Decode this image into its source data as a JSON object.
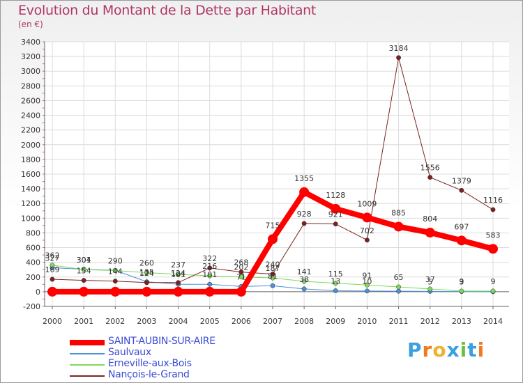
{
  "header": {
    "title": "Evolution du Montant de la Dette par Habitant",
    "subtitle": "(en €)"
  },
  "logo": {
    "letters": [
      "P",
      "r",
      "o",
      "x",
      "i",
      "t",
      "i"
    ],
    "colors": [
      "#3aa0e0",
      "#f07a20",
      "#f0b030",
      "#3aa0e0",
      "#6cc040",
      "#3aa0e0",
      "#f07a20"
    ]
  },
  "chart_data": {
    "type": "line",
    "x": [
      2000,
      2001,
      2002,
      2003,
      2004,
      2005,
      2006,
      2007,
      2008,
      2009,
      2010,
      2011,
      2012,
      2013,
      2014
    ],
    "ylim": [
      -200,
      3400
    ],
    "yticks": [
      -200,
      0,
      200,
      400,
      600,
      800,
      1000,
      1200,
      1400,
      1600,
      1800,
      2000,
      2200,
      2400,
      2600,
      2800,
      3000,
      3200,
      3400
    ],
    "grid": true,
    "legend_position": "bottom-left",
    "series": [
      {
        "name": "SAINT-AUBIN-SUR-AIRE",
        "color": "#ff0000",
        "width": 8,
        "values": [
          0,
          0,
          0,
          0,
          0,
          0,
          0,
          715,
          1355,
          1128,
          1009,
          885,
          804,
          697,
          583
        ],
        "labels": [
          "",
          "",
          "",
          "",
          "",
          "",
          "",
          "715",
          "1355",
          "1128",
          "1009",
          "885",
          "804",
          "697",
          "583"
        ]
      },
      {
        "name": "Saulvaux",
        "color": "#4a90d9",
        "width": 1,
        "values": [
          327,
          304,
          290,
          135,
          101,
          101,
          71,
          81,
          38,
          13,
          10,
          7,
          5,
          3,
          0
        ],
        "labels": [
          "327",
          "304",
          "290",
          "135",
          "101",
          "101",
          "71",
          "81",
          "38",
          "13",
          "10",
          "",
          "5",
          "3",
          ""
        ]
      },
      {
        "name": "Erneville-aux-Bois",
        "color": "#7ed957",
        "width": 1,
        "values": [
          362,
          301,
          287,
          260,
          237,
          216,
          202,
          187,
          141,
          115,
          91,
          65,
          37,
          9,
          9
        ],
        "labels": [
          "362",
          "301",
          "",
          "260",
          "237",
          "216",
          "202",
          "187",
          "141",
          "115",
          "91",
          "65",
          "37",
          "9",
          "9"
        ]
      },
      {
        "name": "Nançois-le-Grand",
        "color": "#7a2222",
        "width": 1,
        "values": [
          169,
          154,
          144,
          124,
          124,
          322,
          268,
          240,
          928,
          921,
          702,
          3184,
          1556,
          1379,
          1116
        ],
        "labels": [
          "169",
          "154",
          "144",
          "124",
          "124",
          "322",
          "268",
          "240",
          "928",
          "921",
          "702",
          "3184",
          "1556",
          "1379",
          "1116"
        ]
      }
    ]
  }
}
